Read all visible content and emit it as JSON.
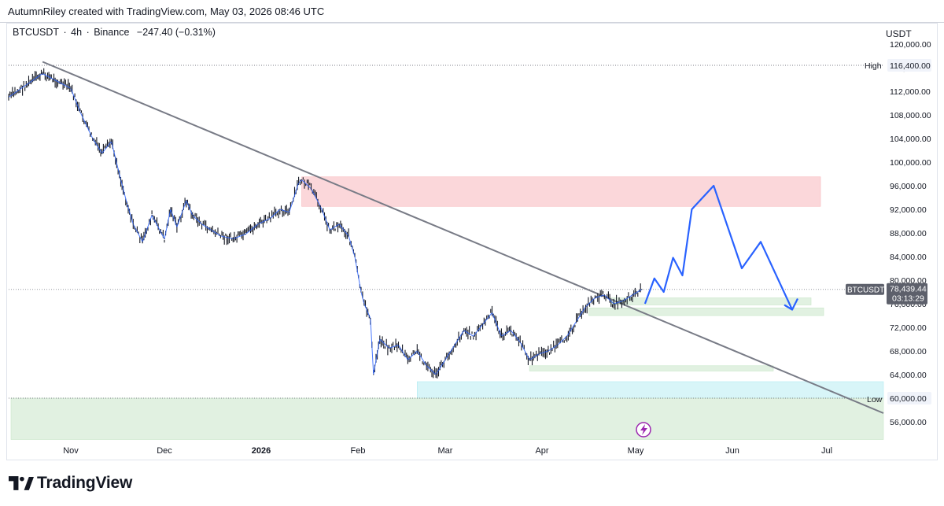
{
  "header": {
    "attribution": "AutumnRiley created with TradingView.com, May 03, 2026 08:46 UTC"
  },
  "symbol_bar": {
    "symbol": "BTCUSDT",
    "separator": "·",
    "interval": "4h",
    "exchange": "Binance",
    "change": "−247.40 (−0.31%)"
  },
  "currency_label": "USDT",
  "price_scale": {
    "ticks": [
      "120,000.00",
      "116,000.00",
      "112,000.00",
      "108,000.00",
      "104,000.00",
      "100,000.00",
      "96,000.00",
      "92,000.00",
      "88,000.00",
      "84,000.00",
      "80,000.00",
      "76,000.00",
      "72,000.00",
      "68,000.00",
      "64,000.00",
      "60,000.00",
      "56,000.00"
    ],
    "high_label": "High",
    "high_value": "116,400.00",
    "low_label": "Low",
    "low_value": "60,000.00",
    "last_symbol": "BTCUSDT",
    "last_price": "78,439.44",
    "countdown": "03:13:29"
  },
  "time_scale": {
    "labels": [
      "Nov",
      "Dec",
      "2026",
      "Feb",
      "Mar",
      "Apr",
      "May",
      "Jun",
      "Jul"
    ]
  },
  "branding": {
    "logo_text": "TradingView"
  },
  "colors": {
    "candle": "#131722",
    "ma_line": "#2962ff",
    "trendline": "#787b86",
    "projection": "#2962ff",
    "resistance_zone": "#f7b7bc",
    "support_zone": "#c8e6c9",
    "liquidity_zone": "#b2ebf2",
    "lightning_badge": "#9c27b0"
  },
  "chart_data": {
    "type": "line",
    "title": "",
    "series": [
      {
        "name": "BTCUSDT",
        "x": [
          "2025-10-21",
          "2025-10-27",
          "2025-10-29",
          "2025-11-01",
          "2025-11-04",
          "2025-11-08",
          "2025-11-11",
          "2025-11-14",
          "2025-11-17",
          "2025-11-19",
          "2025-11-21",
          "2025-11-24",
          "2025-11-27",
          "2025-12-01",
          "2025-12-03",
          "2025-12-05",
          "2025-12-08",
          "2025-12-10",
          "2025-12-13",
          "2025-12-16",
          "2025-12-19",
          "2025-12-23",
          "2025-12-27",
          "2025-12-31",
          "2026-01-04",
          "2026-01-07",
          "2026-01-10",
          "2026-01-13",
          "2026-01-14",
          "2026-01-17",
          "2026-01-20",
          "2026-01-23",
          "2026-01-26",
          "2026-01-29",
          "2026-01-31",
          "2026-02-02",
          "2026-02-03",
          "2026-02-05",
          "2026-02-06",
          "2026-02-08",
          "2026-02-11",
          "2026-02-14",
          "2026-02-17",
          "2026-02-20",
          "2026-02-23",
          "2026-02-26",
          "2026-03-01",
          "2026-03-04",
          "2026-03-07",
          "2026-03-10",
          "2026-03-13",
          "2026-03-16",
          "2026-03-19",
          "2026-03-22",
          "2026-03-25",
          "2026-03-28",
          "2026-03-31",
          "2026-04-03",
          "2026-04-06",
          "2026-04-09",
          "2026-04-12",
          "2026-04-15",
          "2026-04-18",
          "2026-04-21",
          "2026-04-24",
          "2026-04-27",
          "2026-04-30",
          "2026-05-03"
        ],
        "values": [
          111000,
          115000,
          114000,
          112500,
          108500,
          104000,
          101500,
          103500,
          97000,
          93000,
          89500,
          86500,
          91000,
          87000,
          92000,
          89000,
          93500,
          91000,
          89500,
          88500,
          87500,
          87000,
          87800,
          89500,
          90500,
          92000,
          91500,
          96500,
          97000,
          95500,
          92500,
          88500,
          89500,
          87500,
          84000,
          78000,
          76000,
          73500,
          64000,
          70000,
          68500,
          69000,
          66500,
          68000,
          65500,
          64000,
          66500,
          69000,
          71500,
          70500,
          72500,
          74500,
          70500,
          71500,
          69500,
          66500,
          67500,
          68000,
          69000,
          70500,
          73000,
          75500,
          77000,
          77500,
          76000,
          76500,
          77500,
          78439
        ]
      },
      {
        "name": "",
        "x": [
          "2026-05-04",
          "2026-05-07",
          "2026-05-10",
          "2026-05-13",
          "2026-05-16",
          "2026-05-19",
          "2026-05-26",
          "2026-06-04",
          "2026-06-10",
          "2026-06-20",
          "2026-06-22"
        ],
        "values": [
          76000,
          80300,
          78000,
          83800,
          80800,
          92000,
          96000,
          82000,
          86500,
          75000,
          76000
        ]
      }
    ],
    "annotations": {
      "high": 116400,
      "low": 60000,
      "last_price": 78439.44,
      "trendline": {
        "from": {
          "x": "2025-10-27",
          "y": 117000
        },
        "to": {
          "x": "2026-07-15",
          "y": 57500
        }
      },
      "zones": [
        {
          "name": "resistance",
          "from": "2026-01-14",
          "to": "2026-06-29",
          "y": [
            92500,
            97500
          ],
          "color": "#f7b7bc"
        },
        {
          "name": "support-upper",
          "from": "2026-04-23",
          "to": "2026-06-26",
          "y": [
            75800,
            77000
          ],
          "color": "#c8e6c9"
        },
        {
          "name": "support-mid",
          "from": "2026-04-16",
          "to": "2026-06-30",
          "y": [
            74000,
            75300
          ],
          "color": "#c8e6c9"
        },
        {
          "name": "support-lower",
          "from": "2026-03-28",
          "to": "2026-06-14",
          "y": [
            64600,
            65500
          ],
          "color": "#c8e6c9"
        },
        {
          "name": "liquidity",
          "from": "2026-02-20",
          "to": "2026-07-31",
          "y": [
            60000,
            62800
          ],
          "color": "#b2ebf2"
        },
        {
          "name": "demand-floor",
          "from": "2025-10-21",
          "to": "2026-07-31",
          "y": [
            53000,
            60000
          ],
          "color": "#c8e6c9"
        }
      ]
    },
    "xlabel": "",
    "ylabel": "",
    "ylim": [
      53000,
      125000
    ],
    "grid": false,
    "legend": "none"
  }
}
